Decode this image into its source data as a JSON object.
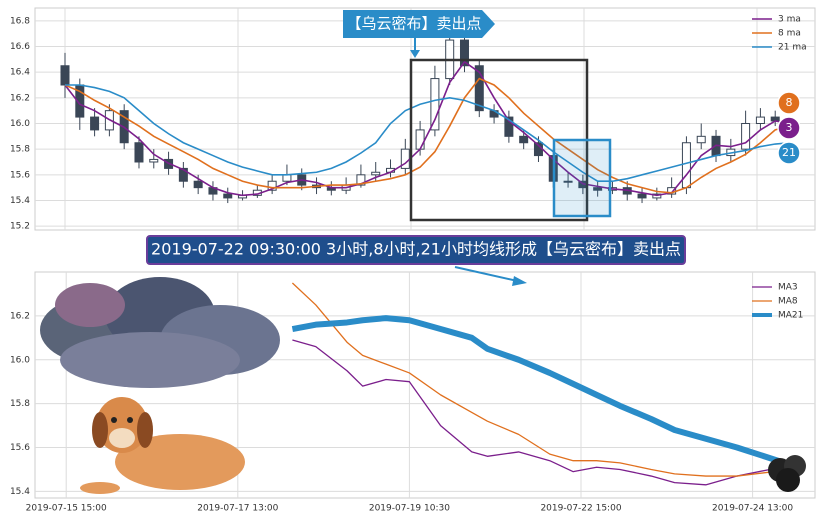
{
  "chart_data": [
    {
      "type": "candlestick",
      "title": "【乌云密布】卖出点",
      "open": [
        16.45,
        16.3,
        16.05,
        15.95,
        16.1,
        15.85,
        15.7,
        15.72,
        15.65,
        15.55,
        15.5,
        15.45,
        15.42,
        15.44,
        15.48,
        15.55,
        15.6,
        15.52,
        15.5,
        15.48,
        15.52,
        15.6,
        15.62,
        15.65,
        15.8,
        15.95,
        16.35,
        16.65,
        16.45,
        16.1,
        16.05,
        15.9,
        15.85,
        15.75,
        15.55,
        15.55,
        15.5,
        15.48,
        15.5,
        15.45,
        15.42,
        15.45,
        15.5,
        15.85,
        15.9,
        15.75,
        15.8,
        16.0,
        16.05,
        16.02
      ],
      "high": [
        16.55,
        16.35,
        16.12,
        16.15,
        16.15,
        15.9,
        15.8,
        15.78,
        15.7,
        15.6,
        15.55,
        15.5,
        15.48,
        15.52,
        15.6,
        15.68,
        15.65,
        15.58,
        15.55,
        15.58,
        15.68,
        15.7,
        15.72,
        15.88,
        16.02,
        16.45,
        16.75,
        16.7,
        16.5,
        16.15,
        16.1,
        15.95,
        15.9,
        15.8,
        15.62,
        15.6,
        15.55,
        15.55,
        15.55,
        15.5,
        15.5,
        15.58,
        15.9,
        16.0,
        15.95,
        15.88,
        16.1,
        16.12,
        16.1,
        16.05
      ],
      "low": [
        16.2,
        15.95,
        15.9,
        15.9,
        15.8,
        15.65,
        15.65,
        15.6,
        15.5,
        15.45,
        15.4,
        15.38,
        15.4,
        15.42,
        15.45,
        15.52,
        15.48,
        15.45,
        15.44,
        15.45,
        15.5,
        15.55,
        15.58,
        15.6,
        15.75,
        15.9,
        16.3,
        16.4,
        16.05,
        16.0,
        15.85,
        15.8,
        15.7,
        15.5,
        15.5,
        15.45,
        15.43,
        15.45,
        15.4,
        15.38,
        15.4,
        15.42,
        15.45,
        15.8,
        15.7,
        15.7,
        15.75,
        15.95,
        15.98,
        15.9
      ],
      "close": [
        16.3,
        16.05,
        15.95,
        16.1,
        15.85,
        15.7,
        15.72,
        15.65,
        15.55,
        15.5,
        15.45,
        15.42,
        15.44,
        15.48,
        15.55,
        15.6,
        15.52,
        15.5,
        15.48,
        15.52,
        15.6,
        15.62,
        15.65,
        15.8,
        15.95,
        16.35,
        16.65,
        16.45,
        16.1,
        16.05,
        15.9,
        15.85,
        15.75,
        15.55,
        15.55,
        15.5,
        15.48,
        15.5,
        15.45,
        15.42,
        15.45,
        15.5,
        15.85,
        15.9,
        15.75,
        15.8,
        16.0,
        16.05,
        16.02,
        15.95
      ],
      "series": [
        {
          "name": "3 ma",
          "color": "#7b1f8c",
          "values": [
            16.3,
            16.15,
            16.1,
            16.03,
            15.97,
            15.88,
            15.76,
            15.69,
            15.64,
            15.57,
            15.5,
            15.46,
            15.44,
            15.45,
            15.49,
            15.54,
            15.56,
            15.54,
            15.5,
            15.5,
            15.53,
            15.58,
            15.62,
            15.69,
            15.8,
            16.03,
            16.32,
            16.48,
            16.4,
            16.2,
            16.02,
            15.93,
            15.83,
            15.72,
            15.62,
            15.53,
            15.51,
            15.49,
            15.48,
            15.46,
            15.44,
            15.46,
            15.6,
            15.75,
            15.83,
            15.82,
            15.85,
            15.95,
            16.02,
            16.0
          ]
        },
        {
          "name": "8 ma",
          "color": "#e0701e",
          "values": [
            16.3,
            16.25,
            16.18,
            16.12,
            16.05,
            15.98,
            15.9,
            15.84,
            15.78,
            15.72,
            15.65,
            15.6,
            15.55,
            15.52,
            15.5,
            15.5,
            15.5,
            15.51,
            15.52,
            15.52,
            15.53,
            15.55,
            15.57,
            15.6,
            15.66,
            15.78,
            15.98,
            16.2,
            16.35,
            16.3,
            16.2,
            16.08,
            15.98,
            15.88,
            15.8,
            15.72,
            15.64,
            15.58,
            15.53,
            15.5,
            15.47,
            15.46,
            15.5,
            15.58,
            15.65,
            15.7,
            15.76,
            15.85,
            15.95,
            15.98
          ]
        },
        {
          "name": "21 ma",
          "color": "#2a8cc8",
          "values": [
            16.3,
            16.3,
            16.28,
            16.25,
            16.2,
            16.1,
            16.0,
            15.92,
            15.85,
            15.8,
            15.75,
            15.7,
            15.66,
            15.63,
            15.6,
            15.6,
            15.61,
            15.62,
            15.65,
            15.7,
            15.77,
            15.85,
            16.0,
            16.1,
            16.15,
            16.18,
            16.2,
            16.18,
            16.14,
            16.1,
            16.03,
            15.95,
            15.87,
            15.78,
            15.7,
            15.62,
            15.55,
            15.55,
            15.57,
            15.6,
            15.63,
            15.66,
            15.69,
            15.72,
            15.75,
            15.77,
            15.79,
            15.82,
            15.84,
            15.85
          ]
        }
      ],
      "badges": [
        {
          "label": "8",
          "color": "#e0701e"
        },
        {
          "label": "3",
          "color": "#7b1f8c"
        },
        {
          "label": "21",
          "color": "#2a8cc8"
        }
      ],
      "ylim": [
        15.17,
        16.9
      ],
      "yticks": [
        15.2,
        15.4,
        15.6,
        15.8,
        {
          "value": 16,
          "label": "16.0"
        },
        16.2,
        16.4,
        16.6,
        16.8
      ],
      "grid": true
    },
    {
      "type": "line",
      "title": "2019-07-22 09:30:00 3小时,8小时,21小时均线形成【乌云密布】卖出点",
      "x": [
        33,
        36,
        40,
        42,
        45,
        48,
        52,
        56,
        58,
        62,
        66,
        69,
        72,
        75,
        79,
        82,
        86,
        90,
        97
      ],
      "series": [
        {
          "name": "MA3",
          "color": "#7b1f8c",
          "width": 1.3,
          "values": [
            16.09,
            16.06,
            15.95,
            15.88,
            15.91,
            15.9,
            15.7,
            15.58,
            15.56,
            15.58,
            15.54,
            15.49,
            15.51,
            15.5,
            15.47,
            15.44,
            15.43,
            15.47,
            15.52
          ]
        },
        {
          "name": "MA8",
          "color": "#e0701e",
          "width": 1.3,
          "values": [
            16.35,
            16.25,
            16.08,
            16.02,
            15.98,
            15.94,
            15.84,
            15.76,
            15.72,
            15.66,
            15.57,
            15.54,
            15.54,
            15.53,
            15.5,
            15.48,
            15.47,
            15.47,
            15.5
          ]
        },
        {
          "name": "MA21",
          "color": "#2a8cc8",
          "width": 6,
          "values": [
            16.14,
            16.16,
            16.17,
            16.18,
            16.19,
            16.18,
            16.14,
            16.1,
            16.05,
            16.0,
            15.94,
            15.89,
            15.84,
            15.79,
            15.73,
            15.68,
            15.64,
            15.6,
            15.52
          ]
        }
      ],
      "xlim": [
        0,
        100
      ],
      "xticks": [
        {
          "value": 4,
          "label": "2019-07-15 15:00"
        },
        {
          "value": 26,
          "label": "2019-07-17 13:00"
        },
        {
          "value": 48,
          "label": "2019-07-19 10:30"
        },
        {
          "value": 70,
          "label": "2019-07-22 15:00"
        },
        {
          "value": 92,
          "label": "2019-07-24 13:00"
        }
      ],
      "ylim": [
        15.37,
        16.4
      ],
      "yticks": [
        15.4,
        15.6,
        15.8,
        {
          "value": 16,
          "label": "16.0"
        },
        16.2
      ],
      "grid": true
    }
  ]
}
